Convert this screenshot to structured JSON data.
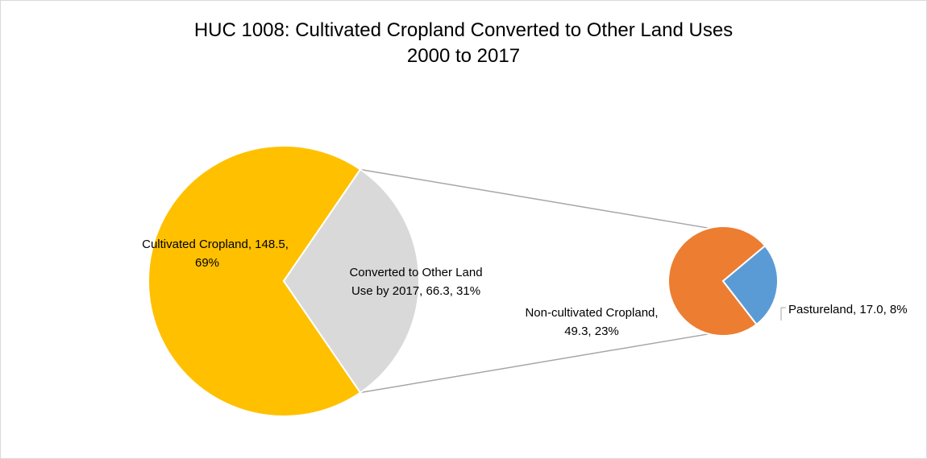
{
  "chart_data": {
    "type": "pie",
    "title_line1": "HUC 1008: Cultivated Cropland Converted to Other Land Uses",
    "title_line2": "2000 to 2017",
    "main_pie": {
      "slices": [
        {
          "name": "Cultivated Cropland",
          "value": 148.5,
          "percent": "69%",
          "color": "#FFC000"
        },
        {
          "name": "Converted to Other Land Use by 2017",
          "value": 66.3,
          "percent": "31%",
          "color": "#D9D9D9"
        }
      ]
    },
    "secondary_pie": {
      "slices": [
        {
          "name": "Non-cultivated Cropland",
          "value": 49.3,
          "percent": "23%",
          "color": "#ED7D31"
        },
        {
          "name": "Pastureland",
          "value": 17.0,
          "percent": "8%",
          "color": "#5B9BD5"
        }
      ]
    },
    "connector_color": "#A6A6A6",
    "labels": {
      "cultivated_l1": "Cultivated Cropland, 148.5,",
      "cultivated_l2": "69%",
      "converted_l1": "Converted to Other Land",
      "converted_l2": "Use by 2017, 66.3, 31%",
      "noncult_l1": "Non-cultivated Cropland,",
      "noncult_l2": "49.3, 23%",
      "pasture": "Pastureland, 17.0, 8%"
    }
  }
}
